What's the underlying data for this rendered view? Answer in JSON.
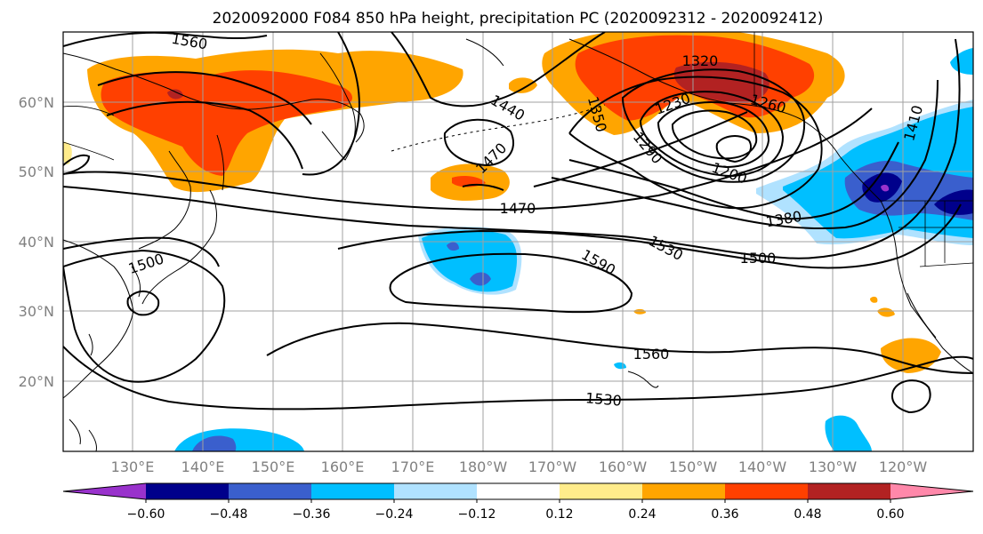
{
  "figure": {
    "title": "2020092000 F084 850 hPa height, precipitation PC (2020092312 - 2020092412)"
  },
  "axes": {
    "lon_ticks": [
      "130°E",
      "140°E",
      "150°E",
      "160°E",
      "170°E",
      "180°W",
      "170°W",
      "160°W",
      "150°W",
      "140°W",
      "130°W",
      "120°W"
    ],
    "lat_ticks": [
      "60°N",
      "50°N",
      "40°N",
      "30°N",
      "20°N"
    ]
  },
  "contour_labels": [
    "1560",
    "1320",
    "1440",
    "1350",
    "1230",
    "1260",
    "1290",
    "1200",
    "1410",
    "1470",
    "1470",
    "1380",
    "1530",
    "1500",
    "1500",
    "1590",
    "1560",
    "1530"
  ],
  "colorbar": {
    "colors": [
      "#9932cc",
      "#00008b",
      "#3a5fcd",
      "#00bfff",
      "#b0e2ff",
      "#ffffff",
      "#ffec8b",
      "#ffa500",
      "#ff4000",
      "#b22222",
      "#ff88aa"
    ],
    "tick_labels": [
      "−0.60",
      "−0.48",
      "−0.36",
      "−0.24",
      "−0.12",
      "0.12",
      "0.24",
      "0.36",
      "0.48",
      "0.60"
    ]
  },
  "chart_data": {
    "type": "map",
    "title": "2020092000 F084 850 hPa height, precipitation PC (2020092312 - 2020092412)",
    "contour_field": "850 hPa height",
    "contour_levels_labeled": [
      1200,
      1230,
      1260,
      1290,
      1320,
      1350,
      1380,
      1410,
      1440,
      1470,
      1500,
      1530,
      1560,
      1590
    ],
    "shaded_field": "precipitation PC",
    "shading_levels": [
      -0.6,
      -0.48,
      -0.36,
      -0.24,
      -0.12,
      0.12,
      0.24,
      0.36,
      0.48,
      0.6
    ],
    "colorbar_extend": "both",
    "grid": true
  }
}
